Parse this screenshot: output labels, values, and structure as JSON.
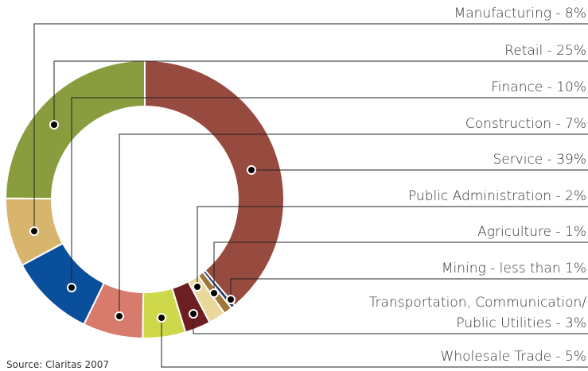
{
  "chart_data": {
    "type": "donut",
    "source": "Source: Claritas 2007",
    "categories": [
      "Service - 39%",
      "Mining - less than 1%",
      "Agriculture - 1%",
      "Public Administration - 2%",
      "Transportation, Communication/\nPublic Utilities - 3%",
      "Wholesale Trade - 5%",
      "Construction - 7%",
      "Finance - 10%",
      "Manufacturing - 8%",
      "Retail - 25%"
    ],
    "values": [
      39,
      0.5,
      1,
      2,
      3,
      5,
      7,
      10,
      8,
      25
    ],
    "colors": [
      "#974a3e",
      "#2c3a68",
      "#9d7638",
      "#ead79c",
      "#6d1e20",
      "#cfd84a",
      "#d77b6d",
      "#0a4f9b",
      "#d7b56c",
      "#8a9d3e"
    ]
  }
}
